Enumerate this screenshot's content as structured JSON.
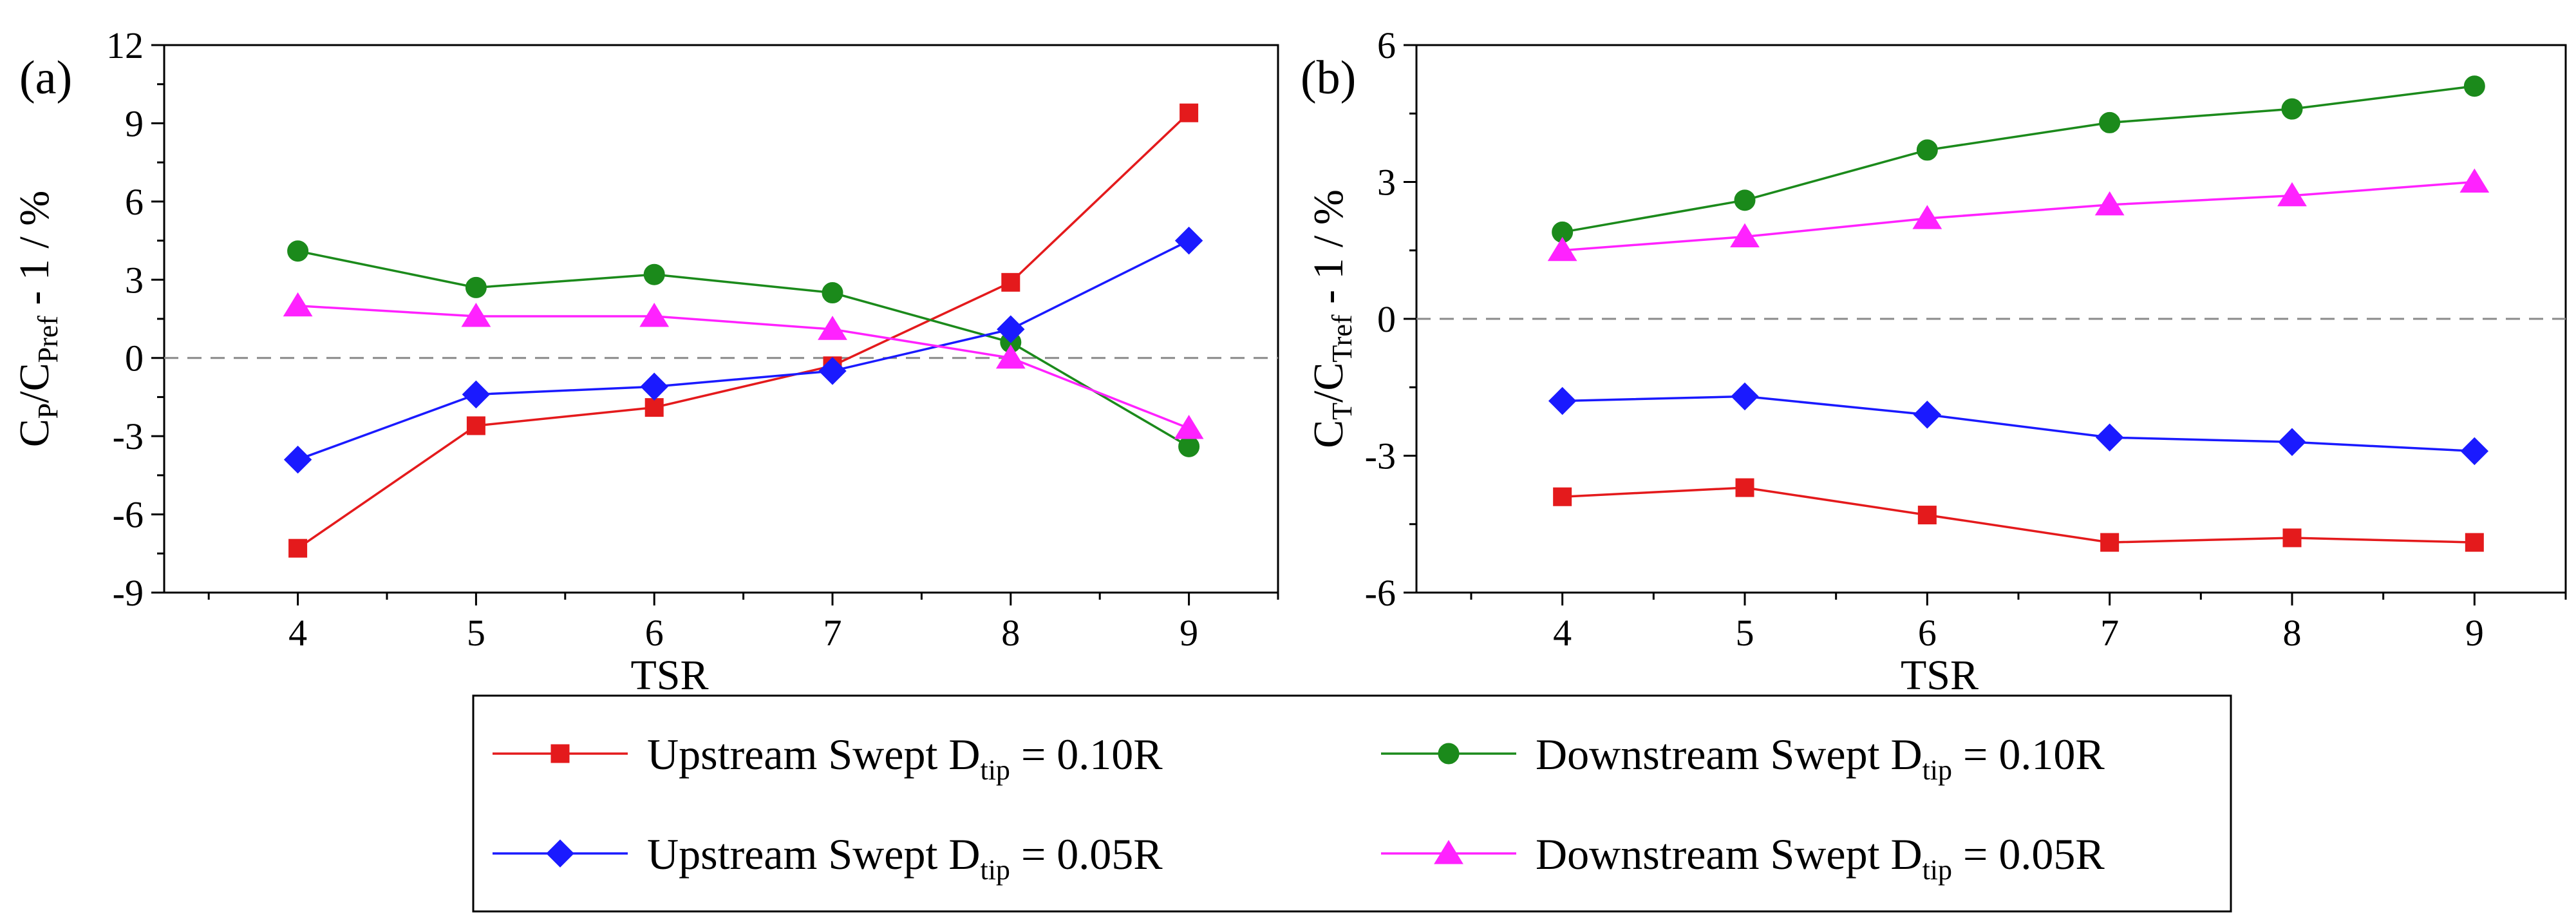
{
  "chart_data": [
    {
      "type": "line",
      "panel_label": "(a)",
      "x": [
        4,
        5,
        6,
        7,
        8,
        9
      ],
      "xlabel": "TSR",
      "ylabel": {
        "c1": "C",
        "s1": "P",
        "slash": "/C",
        "s2": "Pref",
        "tail": " - 1 / %"
      },
      "ylim": [
        -9,
        12
      ],
      "yticks": [
        -9,
        -6,
        -3,
        0,
        3,
        6,
        9,
        12
      ],
      "ytick_labels": [
        "-9",
        "-6",
        "-3",
        "0",
        "3",
        "6",
        "9",
        "12"
      ],
      "xticks": [
        4,
        5,
        6,
        7,
        8,
        9
      ],
      "xtick_labels": [
        "4",
        "5",
        "6",
        "7",
        "8",
        "9"
      ],
      "reference_line": 0,
      "series": [
        {
          "name": "Upstream Swept Dtip = 0.10R",
          "key": "up010",
          "values": [
            -7.3,
            -2.6,
            -1.9,
            -0.3,
            2.9,
            9.4
          ]
        },
        {
          "name": "Downstream Swept Dtip = 0.10R",
          "key": "down010",
          "values": [
            4.1,
            2.7,
            3.2,
            2.5,
            0.6,
            -3.4
          ]
        },
        {
          "name": "Upstream Swept Dtip = 0.05R",
          "key": "up005",
          "values": [
            -3.9,
            -1.4,
            -1.1,
            -0.5,
            1.1,
            4.5
          ]
        },
        {
          "name": "Downstream Swept Dtip = 0.05R",
          "key": "down005",
          "values": [
            2.0,
            1.6,
            1.6,
            1.1,
            0.0,
            -2.7
          ]
        }
      ]
    },
    {
      "type": "line",
      "panel_label": "(b)",
      "x": [
        4,
        5,
        6,
        7,
        8,
        9
      ],
      "xlabel": "TSR",
      "ylabel": {
        "c1": "C",
        "s1": "T",
        "slash": "/C",
        "s2": "Tref",
        "tail": " - 1 / %"
      },
      "ylim": [
        -6,
        6
      ],
      "yticks": [
        -6,
        -3,
        0,
        3,
        6
      ],
      "ytick_labels": [
        "-6",
        "-3",
        "0",
        "3",
        "6"
      ],
      "xticks": [
        4,
        5,
        6,
        7,
        8,
        9
      ],
      "xtick_labels": [
        "4",
        "5",
        "6",
        "7",
        "8",
        "9"
      ],
      "reference_line": 0,
      "series": [
        {
          "name": "Upstream Swept Dtip = 0.10R",
          "key": "up010",
          "values": [
            -3.9,
            -3.7,
            -4.3,
            -4.9,
            -4.8,
            -4.9
          ]
        },
        {
          "name": "Downstream Swept Dtip = 0.10R",
          "key": "down010",
          "values": [
            1.9,
            2.6,
            3.7,
            4.3,
            4.6,
            5.1
          ]
        },
        {
          "name": "Upstream Swept Dtip = 0.05R",
          "key": "up005",
          "values": [
            -1.8,
            -1.7,
            -2.1,
            -2.6,
            -2.7,
            -2.9
          ]
        },
        {
          "name": "Downstream Swept Dtip = 0.05R",
          "key": "down005",
          "values": [
            1.5,
            1.8,
            2.2,
            2.5,
            2.7,
            3.0
          ]
        }
      ]
    }
  ],
  "series_style": {
    "up010": {
      "color": "#e41a1c",
      "marker": "square"
    },
    "down010": {
      "color": "#1b8a1b",
      "marker": "circle"
    },
    "up005": {
      "color": "#1a1aff",
      "marker": "diamond"
    },
    "down005": {
      "color": "#ff22ff",
      "marker": "triangle"
    }
  },
  "legend": {
    "items": [
      {
        "key": "up010",
        "pre": "Upstream Swept D",
        "sub": "tip",
        "post": " = 0.10R"
      },
      {
        "key": "down010",
        "pre": "Downstream Swept D",
        "sub": "tip",
        "post": " = 0.10R"
      },
      {
        "key": "up005",
        "pre": "Upstream Swept D",
        "sub": "tip",
        "post": " = 0.05R"
      },
      {
        "key": "down005",
        "pre": "Downstream Swept D",
        "sub": "tip",
        "post": " = 0.05R"
      }
    ]
  }
}
